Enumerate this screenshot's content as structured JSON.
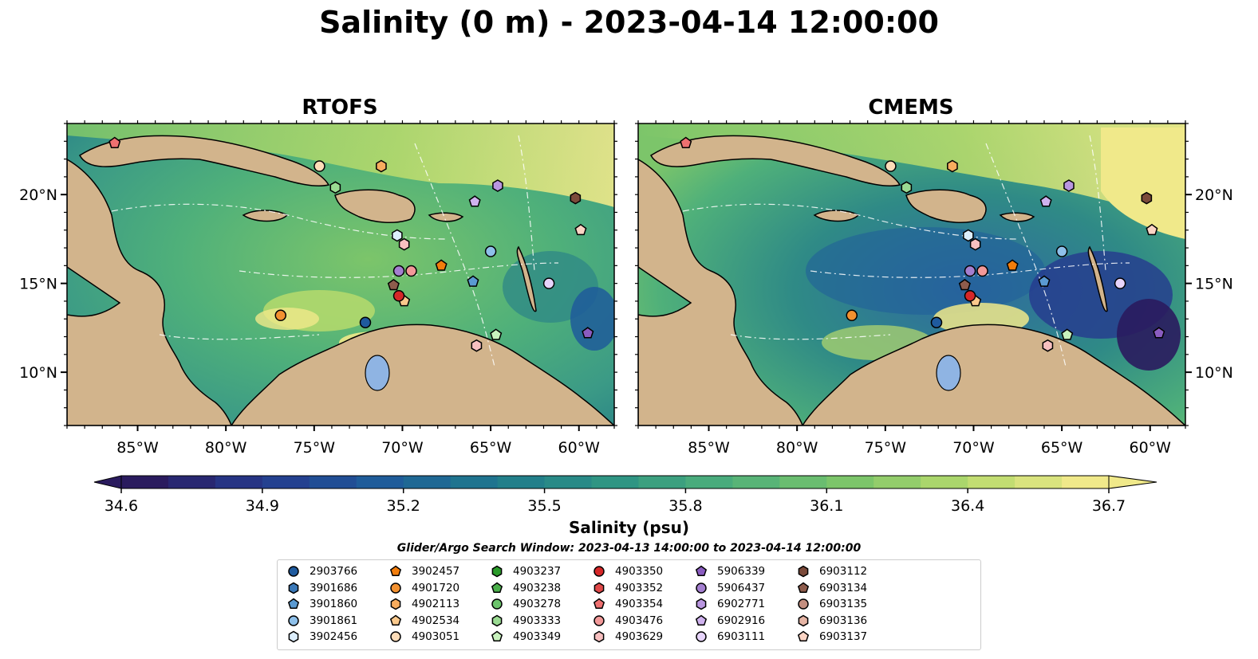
{
  "title": "Salinity (0 m) - 2023-04-14 12:00:00",
  "panels": [
    {
      "title": "RTOFS"
    },
    {
      "title": "CMEMS"
    }
  ],
  "axes": {
    "x_ticks": [
      "85°W",
      "80°W",
      "75°W",
      "70°W",
      "65°W",
      "60°W"
    ],
    "y_ticks": [
      "20°N",
      "15°N",
      "10°N"
    ],
    "lon_range": [
      -89,
      -58
    ],
    "lat_range": [
      7,
      24
    ],
    "x_tick_values": [
      -85,
      -80,
      -75,
      -70,
      -65,
      -60
    ],
    "y_tick_values": [
      20,
      15,
      10
    ]
  },
  "colorbar": {
    "label": "Salinity (psu)",
    "ticks": [
      "34.6",
      "34.9",
      "35.2",
      "35.5",
      "35.8",
      "36.1",
      "36.4",
      "36.7"
    ],
    "vmin": 34.6,
    "vmax": 36.7,
    "extend": "both",
    "colormap": [
      "#2a1b5e",
      "#253a8e",
      "#1f5c9a",
      "#1f7a8c",
      "#2f9583",
      "#4fb07a",
      "#7cc56a",
      "#b6da6c",
      "#f0e98a"
    ]
  },
  "search_window": "Glider/Argo Search Window: 2023-04-13 14:00:00 to 2023-04-14 12:00:00",
  "colors": {
    "land": "#d2b48c",
    "lake": "#8fb4e3",
    "deep_ocean": "#2a1b5e",
    "fresh_water": "#fdf09a"
  },
  "legend": [
    {
      "id": "2903766",
      "marker": "circle",
      "color": "#1f5a9e"
    },
    {
      "id": "3901686",
      "marker": "hexagon",
      "color": "#3a78b8"
    },
    {
      "id": "3901860",
      "marker": "pentagon",
      "color": "#5a9ad2"
    },
    {
      "id": "3901861",
      "marker": "circle",
      "color": "#8ec0ea"
    },
    {
      "id": "3902456",
      "marker": "hexagon",
      "color": "#dceefc"
    },
    {
      "id": "3902457",
      "marker": "pentagon",
      "color": "#f27d0c"
    },
    {
      "id": "4901720",
      "marker": "circle",
      "color": "#f39130"
    },
    {
      "id": "4902113",
      "marker": "hexagon",
      "color": "#f7ac5e"
    },
    {
      "id": "4902534",
      "marker": "pentagon",
      "color": "#fac98c"
    },
    {
      "id": "4903051",
      "marker": "circle",
      "color": "#fddcb8"
    },
    {
      "id": "4903237",
      "marker": "hexagon",
      "color": "#2a9b2a"
    },
    {
      "id": "4903238",
      "marker": "pentagon",
      "color": "#4bb04b"
    },
    {
      "id": "4903278",
      "marker": "circle",
      "color": "#6cc46c"
    },
    {
      "id": "4903333",
      "marker": "hexagon",
      "color": "#9adb92"
    },
    {
      "id": "4903349",
      "marker": "pentagon",
      "color": "#c8f2bd"
    },
    {
      "id": "4903350",
      "marker": "circle",
      "color": "#d62728"
    },
    {
      "id": "4903352",
      "marker": "hexagon",
      "color": "#e04848"
    },
    {
      "id": "4903354",
      "marker": "pentagon",
      "color": "#ee7070"
    },
    {
      "id": "4903476",
      "marker": "circle",
      "color": "#f29999"
    },
    {
      "id": "4903629",
      "marker": "hexagon",
      "color": "#f8c0c0"
    },
    {
      "id": "5906339",
      "marker": "pentagon",
      "color": "#8a5cc0"
    },
    {
      "id": "5906437",
      "marker": "circle",
      "color": "#a47fd0"
    },
    {
      "id": "6902771",
      "marker": "hexagon",
      "color": "#b996e0"
    },
    {
      "id": "6902916",
      "marker": "pentagon",
      "color": "#cfb2ee"
    },
    {
      "id": "6903111",
      "marker": "circle",
      "color": "#e7d4fb"
    },
    {
      "id": "6903112",
      "marker": "hexagon",
      "color": "#7b4a3a"
    },
    {
      "id": "6903134",
      "marker": "pentagon",
      "color": "#8e5c4c"
    },
    {
      "id": "6903135",
      "marker": "circle",
      "color": "#c48f80"
    },
    {
      "id": "6903136",
      "marker": "hexagon",
      "color": "#e5b4a4"
    },
    {
      "id": "6903137",
      "marker": "pentagon",
      "color": "#fbd4c4"
    }
  ],
  "chart_data": {
    "type": "scatter",
    "description": "Glider/Argo float positions (lon, lat) overlaid on sea surface salinity maps",
    "xlabel": "",
    "ylabel": "",
    "xlim": [
      -89,
      -58
    ],
    "ylim": [
      7,
      24
    ],
    "series": [
      {
        "id": "2903766",
        "lon": -72.1,
        "lat": 12.8
      },
      {
        "id": "3901860",
        "lon": -66.0,
        "lat": 15.1
      },
      {
        "id": "3901861",
        "lon": -65.0,
        "lat": 16.8
      },
      {
        "id": "3902456",
        "lon": -70.3,
        "lat": 17.7
      },
      {
        "id": "3902457",
        "lon": -67.8,
        "lat": 16.0
      },
      {
        "id": "4901720",
        "lon": -76.9,
        "lat": 13.2
      },
      {
        "id": "4902113",
        "lon": -71.2,
        "lat": 21.6
      },
      {
        "id": "4902534",
        "lon": -69.9,
        "lat": 14.0
      },
      {
        "id": "4903051",
        "lon": -74.7,
        "lat": 21.6
      },
      {
        "id": "4903333",
        "lon": -73.8,
        "lat": 20.4
      },
      {
        "id": "4903349",
        "lon": -64.7,
        "lat": 12.1
      },
      {
        "id": "4903350",
        "lon": -70.2,
        "lat": 14.3
      },
      {
        "id": "4903354",
        "lon": -86.3,
        "lat": 22.9
      },
      {
        "id": "4903476",
        "lon": -69.5,
        "lat": 15.7
      },
      {
        "id": "4903629",
        "lon": -69.9,
        "lat": 17.2
      },
      {
        "id": "4903629",
        "lon": -65.8,
        "lat": 11.5
      },
      {
        "id": "5906339",
        "lon": -59.5,
        "lat": 12.2
      },
      {
        "id": "5906437",
        "lon": -70.2,
        "lat": 15.7
      },
      {
        "id": "6902771",
        "lon": -64.6,
        "lat": 20.5
      },
      {
        "id": "6902916",
        "lon": -65.9,
        "lat": 19.6
      },
      {
        "id": "6903111",
        "lon": -61.7,
        "lat": 15.0
      },
      {
        "id": "6903112",
        "lon": -60.2,
        "lat": 19.8
      },
      {
        "id": "6903134",
        "lon": -70.5,
        "lat": 14.9
      },
      {
        "id": "6903137",
        "lon": -59.9,
        "lat": 18.0
      }
    ]
  }
}
